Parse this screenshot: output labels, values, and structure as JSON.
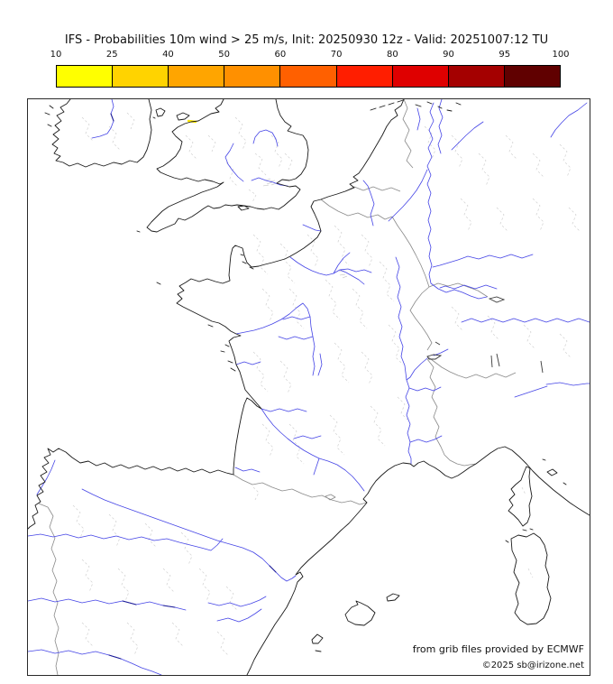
{
  "title": "IFS - Probabilities 10m wind > 25 m/s, Init: 20250930 12z - Valid: 20251007:12 TU",
  "colorbar": {
    "tick_labels": [
      "10",
      "25",
      "40",
      "50",
      "60",
      "70",
      "80",
      "90",
      "95",
      "100"
    ],
    "segments": [
      {
        "from": 10,
        "to": 25,
        "color": "#FFFF00"
      },
      {
        "from": 25,
        "to": 40,
        "color": "#FFD300"
      },
      {
        "from": 40,
        "to": 50,
        "color": "#FFA500"
      },
      {
        "from": 50,
        "to": 60,
        "color": "#FF9000"
      },
      {
        "from": 60,
        "to": 70,
        "color": "#FF6000"
      },
      {
        "from": 70,
        "to": 80,
        "color": "#FF1E00"
      },
      {
        "from": 80,
        "to": 90,
        "color": "#DF0000"
      },
      {
        "from": 90,
        "to": 95,
        "color": "#A40000"
      },
      {
        "from": 95,
        "to": 100,
        "color": "#600000"
      }
    ]
  },
  "map": {
    "credits": [
      "from grib files provided by ECMWF",
      "©2025 sb@irizone.net"
    ],
    "highlight_note": "small 10-25% probability patch on the north Wales coast",
    "colors": {
      "coastline": "#1a1a1a",
      "country_border": "#8a8a8a",
      "admin_boundary": "#d0d0d0",
      "river": "#4545e6",
      "river_dark": "#1c1c96",
      "highlight_probability": "#FFE800",
      "background": "#ffffff"
    }
  }
}
